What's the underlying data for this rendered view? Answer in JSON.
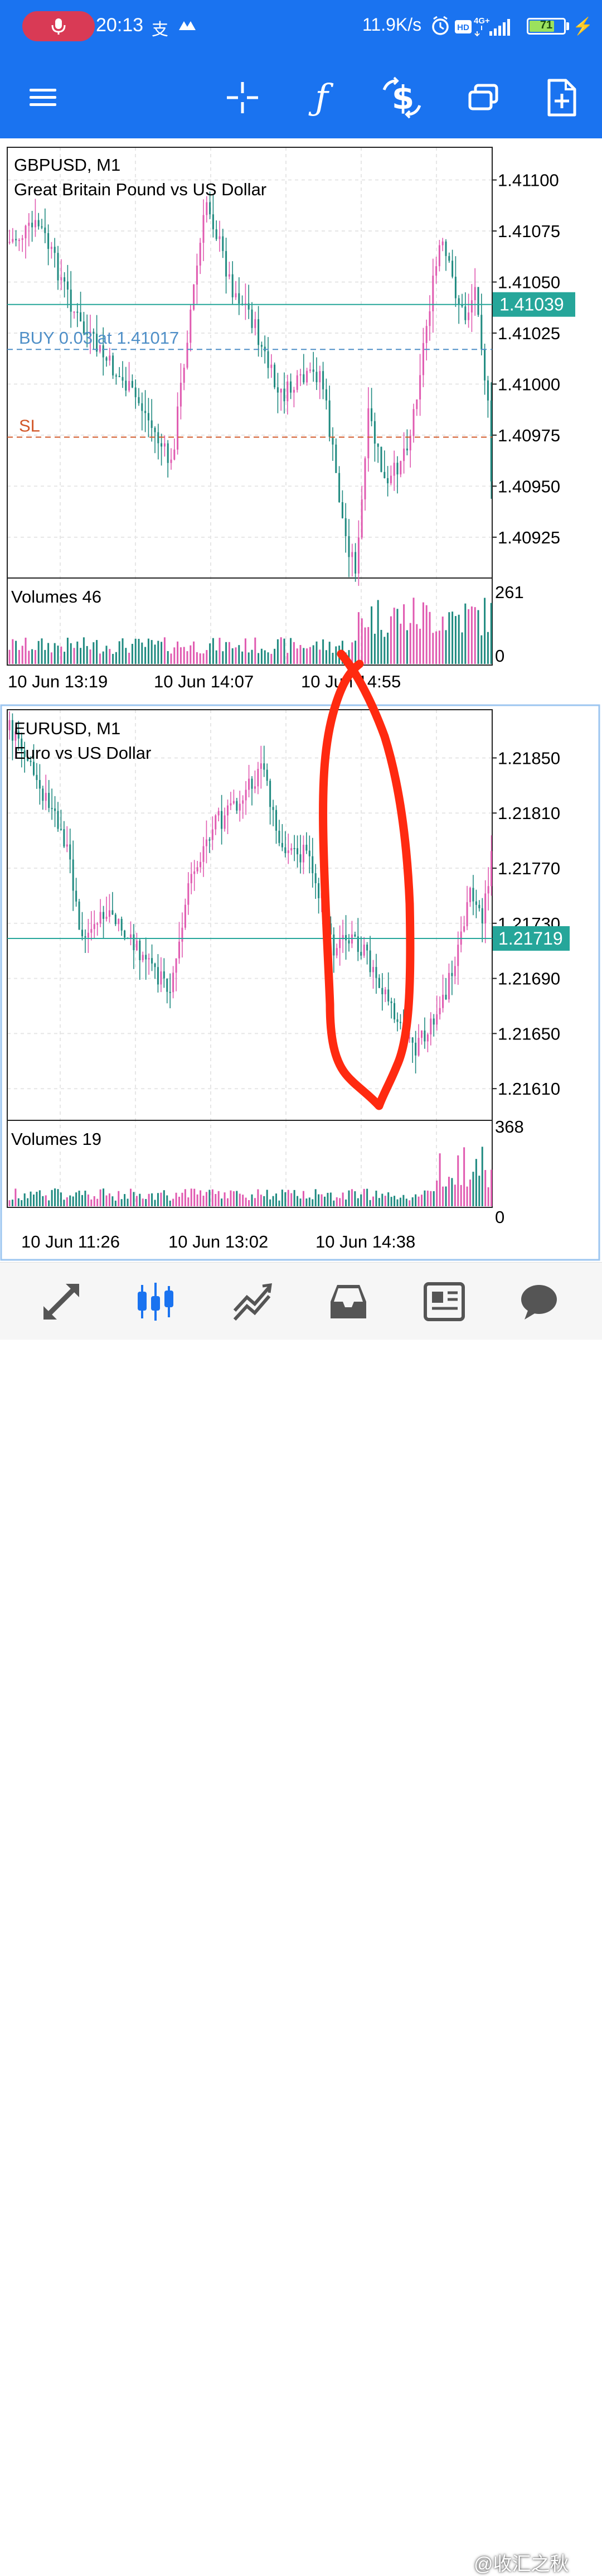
{
  "status_bar": {
    "time": "20:13",
    "pay_glyph": "支",
    "net_speed": "11.9K/s",
    "hd_badge": "HD",
    "network": "4G+",
    "battery": "71",
    "battery_level": 0.71
  },
  "toolbar": {
    "items": [
      "menu-icon",
      "crosshair-icon",
      "indicators-icon",
      "trade-icon",
      "windows-icon",
      "new-order-icon"
    ]
  },
  "charts": [
    {
      "symbol_line": "GBPUSD, M1",
      "description": "Great Britain Pound vs US Dollar",
      "price_ticks": [
        "1.41100",
        "1.41075",
        "1.41050",
        "1.41025",
        "1.41000",
        "1.40975",
        "1.40950",
        "1.40925"
      ],
      "price_values": [
        1.411,
        1.41075,
        1.4105,
        1.41025,
        1.41,
        1.40975,
        1.4095,
        1.40925
      ],
      "price_min": 1.40905,
      "price_max": 1.41116,
      "current_price": "1.41039",
      "current_value": 1.41039,
      "buy_label": "BUY 0.03 at 1.41017",
      "buy_value": 1.41017,
      "sl_label": "SL",
      "sl_value": 1.40974,
      "volume_label": "Volumes 46",
      "volume_max_label": "261",
      "volume_min_label": "0",
      "time_labels": [
        "10 Jun 13:19",
        "10 Jun 14:07",
        "10 Jun 14:55"
      ],
      "up_color": "#e05ab0",
      "down_color": "#1f8a80"
    },
    {
      "symbol_line": "EURUSD, M1",
      "description": "Euro vs US Dollar",
      "price_ticks": [
        "1.21850",
        "1.21810",
        "1.21770",
        "1.21730",
        "1.21690",
        "1.21650",
        "1.21610"
      ],
      "price_values": [
        1.2185,
        1.2181,
        1.2177,
        1.2173,
        1.2169,
        1.2165,
        1.2161
      ],
      "price_min": 1.21587,
      "price_max": 1.21885,
      "current_price": "1.21719",
      "current_value": 1.21719,
      "volume_label": "Volumes 19",
      "volume_max_label": "368",
      "volume_min_label": "0",
      "time_labels": [
        "10 Jun 11:26",
        "10 Jun 13:02",
        "10 Jun 14:38"
      ],
      "up_color": "#e05ab0",
      "down_color": "#1f8a80"
    }
  ],
  "bottom_nav": {
    "items": [
      "quotes-icon",
      "chart-icon",
      "trade-icon",
      "history-icon",
      "news-icon",
      "messages-icon"
    ],
    "active": "chart-icon"
  },
  "watermark": "@收汇之秋",
  "colors": {
    "accent": "#1a73f0",
    "price_tag": "#26a69a",
    "buy_line": "#4f8fc7",
    "sl_line": "#d2582a",
    "annotation": "#ff2a10"
  }
}
